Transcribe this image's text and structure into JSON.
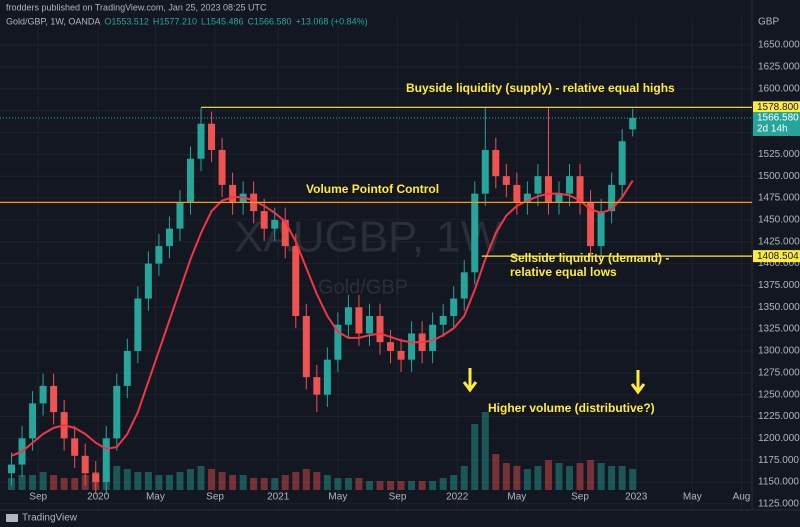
{
  "chart_data": {
    "type": "candlestick",
    "publisher": "frodders published on TradingView.com, Jan 25, 2023 08:25 UTC",
    "symbol": "Gold/GBP, 1W, OANDA",
    "ohlc_legend": [
      "O1553.512",
      "H1577.210",
      "L1545.486",
      "C1566.580",
      "+13.068 (+0.84%)"
    ],
    "watermark": "XAUGBP, 1W",
    "watermark_sub": "Gold/GBP",
    "y_unit": "GBP",
    "footer": "TradingView",
    "x": [
      1,
      4,
      7,
      10,
      13,
      16,
      19,
      22,
      25,
      28,
      31,
      34,
      37,
      40,
      43,
      46,
      49,
      52,
      55,
      58,
      61,
      64,
      67,
      70,
      73,
      76,
      79,
      82,
      85,
      88,
      91,
      94,
      97,
      100,
      103,
      106,
      109,
      112,
      115,
      118,
      121,
      124,
      127,
      130,
      133,
      136,
      139,
      142,
      145,
      148,
      151,
      154,
      157,
      160,
      163,
      166,
      169,
      172,
      175,
      178
    ],
    "open": [
      1160,
      1170,
      1200,
      1240,
      1260,
      1230,
      1200,
      1180,
      1160,
      1150,
      1200,
      1260,
      1300,
      1360,
      1400,
      1420,
      1440,
      1470,
      1520,
      1560,
      1530,
      1490,
      1470,
      1480,
      1460,
      1440,
      1450,
      1420,
      1340,
      1270,
      1250,
      1290,
      1330,
      1350,
      1320,
      1340,
      1310,
      1300,
      1290,
      1320,
      1300,
      1330,
      1340,
      1360,
      1390,
      1480,
      1530,
      1500,
      1490,
      1470,
      1480,
      1500,
      1470,
      1480,
      1500,
      1470,
      1420,
      1460,
      1490,
      1553.512
    ],
    "high": [
      1184,
      1214,
      1254,
      1274,
      1274,
      1244,
      1214,
      1194,
      1174,
      1214,
      1274,
      1314,
      1374,
      1414,
      1434,
      1454,
      1484,
      1534,
      1578,
      1574,
      1544,
      1504,
      1494,
      1494,
      1474,
      1464,
      1464,
      1434,
      1354,
      1284,
      1304,
      1344,
      1364,
      1364,
      1354,
      1354,
      1324,
      1314,
      1334,
      1334,
      1344,
      1354,
      1374,
      1404,
      1494,
      1578,
      1544,
      1514,
      1504,
      1494,
      1514,
      1578,
      1494,
      1514,
      1514,
      1484,
      1474,
      1504,
      1554,
      1577.21
    ],
    "low": [
      1146,
      1156,
      1186,
      1226,
      1216,
      1186,
      1166,
      1146,
      1136,
      1136,
      1186,
      1246,
      1286,
      1346,
      1386,
      1406,
      1426,
      1456,
      1506,
      1516,
      1476,
      1456,
      1456,
      1446,
      1426,
      1426,
      1406,
      1326,
      1256,
      1230,
      1236,
      1276,
      1316,
      1306,
      1306,
      1296,
      1286,
      1276,
      1276,
      1286,
      1286,
      1316,
      1326,
      1346,
      1376,
      1466,
      1486,
      1476,
      1456,
      1456,
      1466,
      1456,
      1456,
      1466,
      1456,
      1408,
      1408,
      1446,
      1476,
      1545.486
    ],
    "close": [
      1170,
      1200,
      1240,
      1260,
      1230,
      1200,
      1180,
      1160,
      1150,
      1200,
      1260,
      1300,
      1360,
      1400,
      1420,
      1440,
      1470,
      1520,
      1560,
      1530,
      1490,
      1470,
      1480,
      1460,
      1440,
      1450,
      1420,
      1340,
      1270,
      1250,
      1290,
      1330,
      1350,
      1320,
      1340,
      1310,
      1300,
      1290,
      1320,
      1300,
      1330,
      1340,
      1360,
      1390,
      1480,
      1530,
      1500,
      1490,
      1470,
      1480,
      1500,
      1470,
      1480,
      1500,
      1470,
      1420,
      1460,
      1490,
      1540,
      1566.58
    ],
    "ma": {
      "color": "#f23645",
      "values": [
        1180,
        1185,
        1195,
        1205,
        1212,
        1215,
        1212,
        1205,
        1195,
        1188,
        1190,
        1205,
        1230,
        1265,
        1300,
        1335,
        1370,
        1405,
        1435,
        1460,
        1472,
        1476,
        1476,
        1472,
        1466,
        1458,
        1448,
        1425,
        1395,
        1365,
        1340,
        1322,
        1315,
        1315,
        1318,
        1320,
        1316,
        1312,
        1310,
        1310,
        1312,
        1318,
        1326,
        1340,
        1370,
        1405,
        1435,
        1455,
        1466,
        1472,
        1477,
        1480,
        1480,
        1478,
        1472,
        1462,
        1458,
        1462,
        1476,
        1495
      ]
    },
    "volume": [
      4,
      5,
      5,
      6,
      5,
      4,
      4,
      5,
      6,
      7,
      8,
      7,
      6,
      6,
      5,
      5,
      6,
      7,
      8,
      7,
      6,
      5,
      5,
      4,
      4,
      4,
      5,
      6,
      7,
      6,
      5,
      4,
      4,
      4,
      3,
      3,
      3,
      3,
      3,
      3,
      3,
      4,
      5,
      8,
      22,
      26,
      12,
      9,
      8,
      7,
      8,
      10,
      9,
      8,
      9,
      10,
      9,
      8,
      8,
      7
    ],
    "volume_lim": [
      0,
      40
    ],
    "up_color": "#26a69a",
    "down_color": "#ef5350",
    "xlim": [
      0,
      212
    ],
    "xticks": [
      {
        "value": 8.6,
        "label": "Sep"
      },
      {
        "value": 25.7,
        "label": "2020"
      },
      {
        "value": 42,
        "label": "May"
      },
      {
        "value": 59,
        "label": "Sep"
      },
      {
        "value": 77,
        "label": "2021"
      },
      {
        "value": 94,
        "label": "May"
      },
      {
        "value": 111,
        "label": "Sep"
      },
      {
        "value": 128,
        "label": "2022"
      },
      {
        "value": 145,
        "label": "May"
      },
      {
        "value": 163,
        "label": "Sep"
      },
      {
        "value": 179,
        "label": "2023"
      },
      {
        "value": 195,
        "label": "May"
      },
      {
        "value": 209,
        "label": "Aug"
      }
    ],
    "ylim": [
      1118,
      1681
    ],
    "yticks": [
      {
        "value": 1125,
        "label": "1125.000"
      },
      {
        "value": 1150,
        "label": "1150.000"
      },
      {
        "value": 1175,
        "label": "1175.000"
      },
      {
        "value": 1200,
        "label": "1200.000"
      },
      {
        "value": 1225,
        "label": "1225.000"
      },
      {
        "value": 1250,
        "label": "1250.000"
      },
      {
        "value": 1275,
        "label": "1275.000"
      },
      {
        "value": 1300,
        "label": "1300.000"
      },
      {
        "value": 1325,
        "label": "1325.000"
      },
      {
        "value": 1350,
        "label": "1350.000"
      },
      {
        "value": 1375,
        "label": "1375.000"
      },
      {
        "value": 1400,
        "label": "1400.000"
      },
      {
        "value": 1425,
        "label": "1425.000"
      },
      {
        "value": 1450,
        "label": "1450.000"
      },
      {
        "value": 1475,
        "label": "1475.000"
      },
      {
        "value": 1500,
        "label": "1500.000"
      },
      {
        "value": 1525,
        "label": "1525.000"
      },
      {
        "value": 1550,
        "label": "1550.000"
      },
      {
        "value": 1575,
        "label": "1575.000"
      },
      {
        "value": 1600,
        "label": "1600.000"
      },
      {
        "value": 1625,
        "label": "1625.000"
      },
      {
        "value": 1650,
        "label": "1650.000"
      }
    ],
    "grid": true,
    "levels": [
      {
        "value": 1578.8,
        "label": "1578.800",
        "color": "#ffeb3b"
      },
      {
        "value": 1408.504,
        "label": "1408.504",
        "color": "#ffeb3b"
      },
      {
        "value": 1470,
        "color": "#ff9800"
      }
    ],
    "last_price": {
      "value": 1566.58,
      "label": "1566.580"
    },
    "countdown": "2d 14h",
    "annotations": [
      "Buyside liquidity (supply) - relative equal highs",
      "Volume Pointof Control",
      "Sellside liquidity (demand) -",
      "relative equal lows",
      "Higher volume (distributive?)"
    ]
  }
}
